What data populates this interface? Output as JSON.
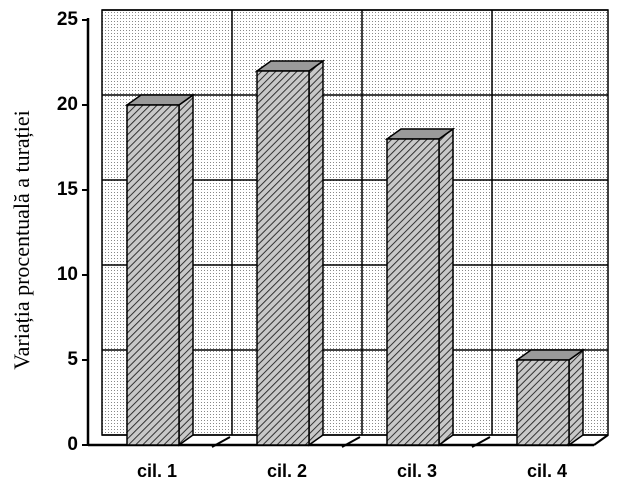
{
  "chart_data": {
    "type": "bar3d",
    "y_label": "Variația procentuală a turației",
    "categories": [
      "cil. 1",
      "cil. 2",
      "cil. 3",
      "cil. 4"
    ],
    "values": [
      20,
      22,
      18,
      5
    ],
    "color": "#9a9a9a",
    "ylim": [
      0,
      25
    ],
    "yticks": [
      0,
      5,
      10,
      15,
      20,
      25
    ],
    "grid": true
  }
}
